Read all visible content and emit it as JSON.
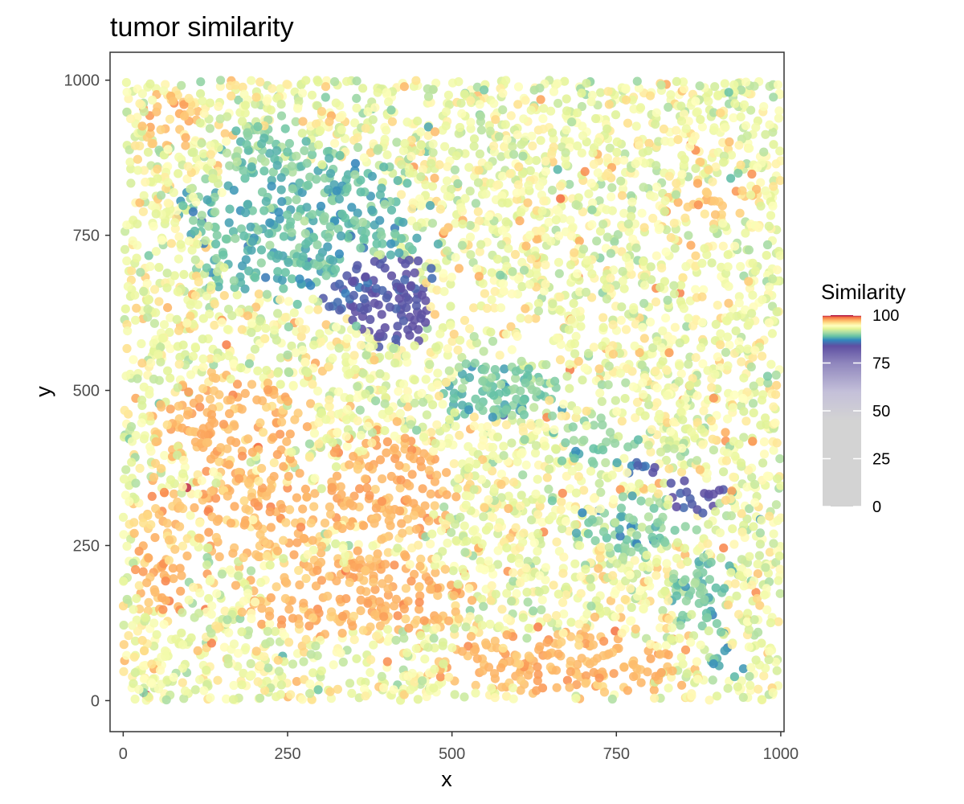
{
  "chart_data": {
    "type": "scatter",
    "title": "tumor similarity",
    "xlabel": "x",
    "ylabel": "y",
    "xlim": [
      -20,
      1005
    ],
    "ylim": [
      1045,
      -50
    ],
    "y_reversed": true,
    "xticks": [
      0,
      250,
      500,
      750,
      1000
    ],
    "yticks": [
      0,
      250,
      500,
      750,
      1000
    ],
    "grid": false,
    "legend": {
      "title": "Similarity",
      "placement": "right",
      "ticks": [
        0,
        25,
        50,
        75,
        100
      ],
      "range": [
        0,
        100
      ],
      "color_stops": [
        {
          "value": 0,
          "color": "#d3d3d3"
        },
        {
          "value": 45,
          "color": "#d3d3d3"
        },
        {
          "value": 60,
          "color": "#c4c0d9"
        },
        {
          "value": 75,
          "color": "#8f86bd"
        },
        {
          "value": 84,
          "color": "#5e4fa2"
        },
        {
          "value": 87,
          "color": "#3288bd"
        },
        {
          "value": 89,
          "color": "#66c2a5"
        },
        {
          "value": 91,
          "color": "#abdda4"
        },
        {
          "value": 93,
          "color": "#e6f598"
        },
        {
          "value": 94.5,
          "color": "#ffffbf"
        },
        {
          "value": 96,
          "color": "#fee08b"
        },
        {
          "value": 97.5,
          "color": "#fdae61"
        },
        {
          "value": 99,
          "color": "#f46d43"
        },
        {
          "value": 100,
          "color": "#9e0142"
        }
      ]
    },
    "point_density": 5500,
    "regions": [
      {
        "x": 360,
        "y": 170,
        "rx": 210,
        "ry": 85,
        "value": 97.3,
        "spread": 0.5
      },
      {
        "x": 660,
        "y": 60,
        "rx": 250,
        "ry": 65,
        "value": 97.2,
        "spread": 0.5
      },
      {
        "x": 210,
        "y": 300,
        "rx": 145,
        "ry": 100,
        "value": 97.0,
        "spread": 0.7
      },
      {
        "x": 400,
        "y": 340,
        "rx": 135,
        "ry": 105,
        "value": 97.3,
        "spread": 0.5
      },
      {
        "x": 160,
        "y": 450,
        "rx": 150,
        "ry": 95,
        "value": 97.1,
        "spread": 0.6
      },
      {
        "x": 60,
        "y": 240,
        "rx": 60,
        "ry": 150,
        "value": 97.0,
        "spread": 0.7
      },
      {
        "x": 75,
        "y": 930,
        "rx": 60,
        "ry": 60,
        "value": 97.1,
        "spread": 0.6
      },
      {
        "x": 900,
        "y": 805,
        "rx": 80,
        "ry": 40,
        "value": 96.8,
        "spread": 0.7
      },
      {
        "x": 375,
        "y": 670,
        "rx": 120,
        "ry": 80,
        "value": 84.5,
        "spread": 0.8
      },
      {
        "x": 410,
        "y": 650,
        "rx": 75,
        "ry": 95,
        "value": 84.3,
        "spread": 0.7
      },
      {
        "x": 870,
        "y": 335,
        "rx": 55,
        "ry": 40,
        "value": 84.5,
        "spread": 0.8
      },
      {
        "x": 790,
        "y": 370,
        "rx": 30,
        "ry": 25,
        "value": 85.0,
        "spread": 1.0
      },
      {
        "x": 280,
        "y": 760,
        "rx": 230,
        "ry": 150,
        "value": 89.0,
        "spread": 1.2
      },
      {
        "x": 575,
        "y": 500,
        "rx": 130,
        "ry": 60,
        "value": 89.5,
        "spread": 1.2
      },
      {
        "x": 780,
        "y": 280,
        "rx": 110,
        "ry": 60,
        "value": 89.5,
        "spread": 1.2
      },
      {
        "x": 880,
        "y": 170,
        "rx": 65,
        "ry": 85,
        "value": 89.5,
        "spread": 1.2
      },
      {
        "x": 920,
        "y": 60,
        "rx": 35,
        "ry": 40,
        "value": 88.0,
        "spread": 1.0
      },
      {
        "x": 720,
        "y": 420,
        "rx": 85,
        "ry": 55,
        "value": 90.0,
        "spread": 1.3
      },
      {
        "x": 220,
        "y": 880,
        "rx": 90,
        "ry": 60,
        "value": 90.0,
        "spread": 1.3
      }
    ],
    "background_value": 93.8,
    "background_spread": 1.6
  }
}
